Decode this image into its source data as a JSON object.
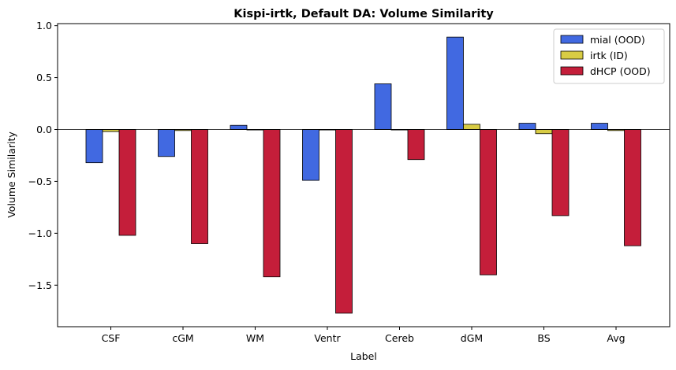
{
  "chart_data": {
    "type": "bar",
    "title": "Kispi-irtk, Default DA: Volume Similarity",
    "xlabel": "Label",
    "ylabel": "Volume Similarity",
    "categories": [
      "CSF",
      "cGM",
      "WM",
      "Ventr",
      "Cereb",
      "dGM",
      "BS",
      "Avg"
    ],
    "series": [
      {
        "name": "mial (OOD)",
        "color": "#4169e1",
        "values": [
          -0.32,
          -0.26,
          0.04,
          -0.49,
          0.44,
          0.89,
          0.06,
          0.06
        ]
      },
      {
        "name": "irtk (ID)",
        "color": "#d8cc44",
        "values": [
          -0.02,
          -0.01,
          0.0,
          0.0,
          0.0,
          0.05,
          -0.04,
          -0.01
        ]
      },
      {
        "name": "dHCP (OOD)",
        "color": "#c41e3a",
        "values": [
          -1.02,
          -1.1,
          -1.42,
          -1.77,
          -0.29,
          -1.4,
          -0.83,
          -1.12
        ]
      }
    ],
    "ylim": [
      -1.9,
      1.02
    ],
    "yticks": [
      1.0,
      0.5,
      0.0,
      -0.5,
      -1.0,
      -1.5
    ],
    "ytick_labels": [
      "1.0",
      "0.5",
      "0.0",
      "−0.5",
      "−1.0",
      "−1.5"
    ],
    "zero_line": true,
    "grid": false,
    "legend_position": "top-right"
  }
}
